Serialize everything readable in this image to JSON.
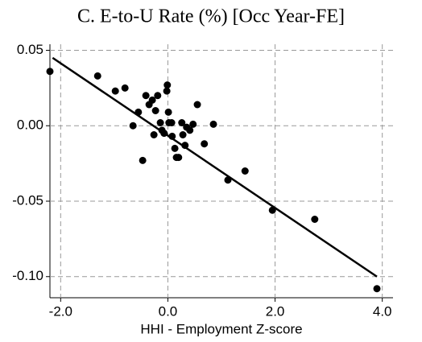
{
  "chart_data": {
    "type": "scatter",
    "title": "C. E-to-U Rate (%) [Occ Year-FE]",
    "x_label": "HHI - Employment Z-score",
    "xlim": [
      -2.2,
      4.2
    ],
    "xticks": [
      {
        "value": -2,
        "label": "-2.0"
      },
      {
        "value": 0,
        "label": "0.0"
      },
      {
        "value": 2,
        "label": "2.0"
      },
      {
        "value": 4,
        "label": "4.0"
      }
    ],
    "ylim": [
      -0.114,
      0.054
    ],
    "yticks": [
      {
        "value": 0.05,
        "label": "0.05"
      },
      {
        "value": 0,
        "label": "0.00"
      },
      {
        "value": -0.05,
        "label": "-0.05"
      },
      {
        "value": -0.1,
        "label": "-0.10"
      }
    ],
    "grid": true,
    "color": "#000000",
    "x": [
      -2.2,
      -1.31,
      -0.98,
      -0.8,
      -0.65,
      -0.55,
      -0.41,
      -0.47,
      -0.35,
      -0.29,
      -0.23,
      -0.19,
      -0.26,
      -0.14,
      -0.11,
      -0.07,
      -0.02,
      -0.01,
      0.01,
      0.02,
      0.07,
      0.08,
      0.13,
      0.16,
      0.2,
      0.26,
      0.28,
      0.32,
      0.35,
      0.41,
      0.47,
      0.55,
      0.68,
      0.85,
      1.12,
      1.44,
      1.95,
      2.74,
      3.9
    ],
    "values": [
      0.036,
      0.033,
      0.023,
      0.025,
      0.0,
      0.009,
      0.02,
      -0.023,
      0.014,
      0.017,
      0.01,
      0.02,
      -0.006,
      0.002,
      -0.003,
      -0.005,
      0.023,
      0.027,
      0.009,
      0.002,
      0.002,
      -0.007,
      -0.015,
      -0.021,
      -0.021,
      0.002,
      -0.006,
      -0.013,
      -0.001,
      -0.003,
      0.001,
      0.014,
      -0.012,
      0.001,
      -0.036,
      -0.03,
      -0.056,
      -0.062,
      -0.108
    ],
    "fit_line": {
      "x": [
        -2.15,
        3.9
      ],
      "values": [
        0.045,
        -0.1
      ]
    }
  }
}
